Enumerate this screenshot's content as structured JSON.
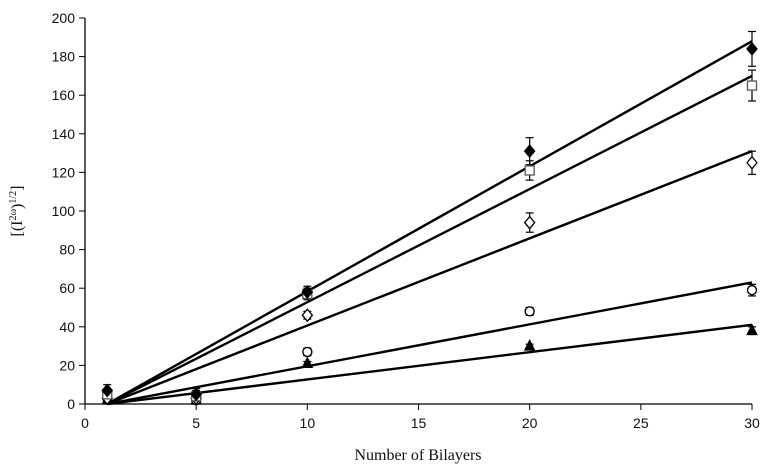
{
  "chart_data": {
    "type": "scatter",
    "xlabel": "Number of Bilayers",
    "ylabel": "[(I",
    "ylabel_sup": "2ω",
    "ylabel_close": ")",
    "ylabel_sup2": "1/2",
    "ylabel_end": "]",
    "xlim": [
      0,
      30
    ],
    "ylim": [
      0,
      200
    ],
    "xticks": [
      0,
      5,
      10,
      15,
      20,
      25,
      30
    ],
    "yticks": [
      0,
      20,
      40,
      60,
      80,
      100,
      120,
      140,
      160,
      180,
      200
    ],
    "grid": false,
    "legend": "none",
    "series": [
      {
        "marker": "filled-diamond",
        "x": [
          1,
          5,
          10,
          20,
          30
        ],
        "y": [
          7,
          5,
          58,
          131,
          184
        ],
        "err": [
          3,
          3,
          3,
          7,
          9
        ],
        "fit": [
          [
            1,
            0
          ],
          [
            30,
            188
          ]
        ]
      },
      {
        "marker": "open-square",
        "x": [
          1,
          5,
          10,
          20,
          30
        ],
        "y": [
          5,
          4,
          57,
          121,
          165
        ],
        "err": [
          3,
          3,
          3,
          5,
          8
        ],
        "fit": [
          [
            1,
            0
          ],
          [
            30,
            170
          ]
        ]
      },
      {
        "marker": "open-diamond",
        "x": [
          1,
          5,
          10,
          20,
          30
        ],
        "y": [
          3,
          3,
          46,
          94,
          125
        ],
        "err": [
          2,
          2,
          2,
          5,
          6
        ],
        "fit": [
          [
            1,
            0
          ],
          [
            30,
            131
          ]
        ]
      },
      {
        "marker": "open-circle",
        "x": [
          1,
          5,
          10,
          20,
          30
        ],
        "y": [
          3,
          2,
          27,
          48,
          59
        ],
        "err": [
          1,
          1,
          2,
          2,
          3
        ],
        "fit": [
          [
            1,
            0
          ],
          [
            30,
            63
          ]
        ]
      },
      {
        "marker": "filled-triangle",
        "x": [
          1,
          5,
          10,
          20,
          30
        ],
        "y": [
          2,
          2,
          21,
          30,
          38
        ],
        "err": [
          1,
          1,
          1,
          1,
          2
        ],
        "fit": [
          [
            1,
            0
          ],
          [
            30,
            41
          ]
        ]
      }
    ]
  }
}
